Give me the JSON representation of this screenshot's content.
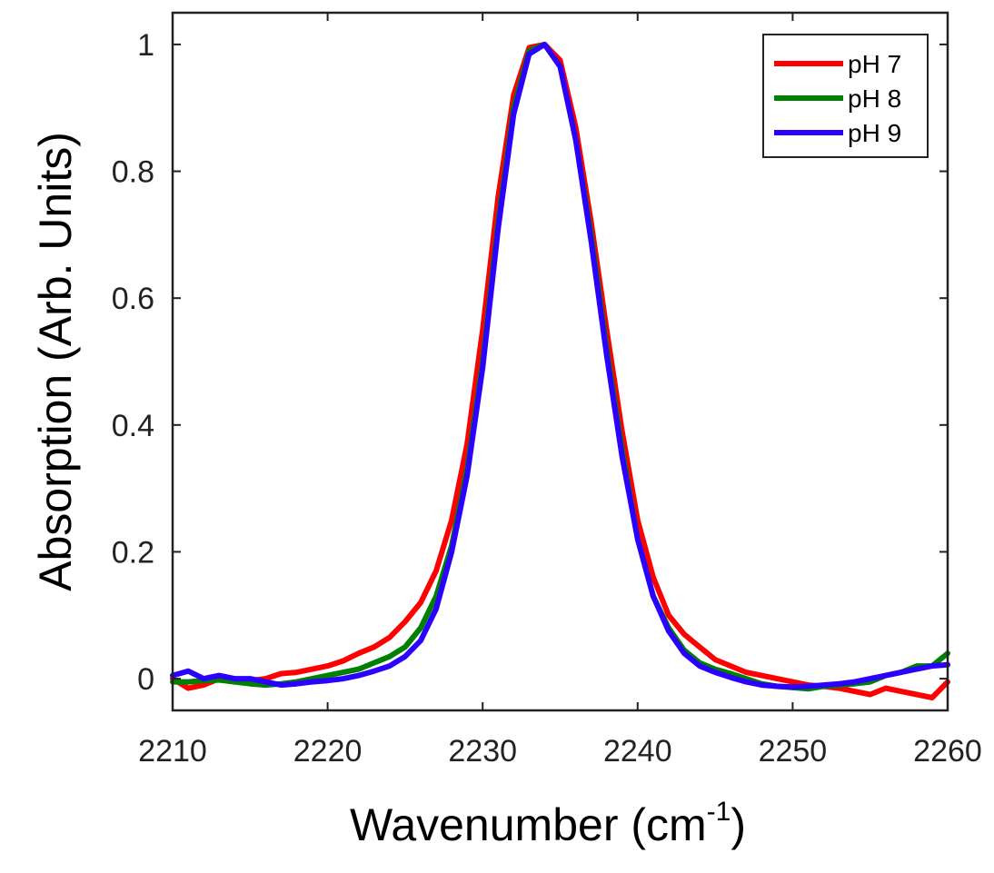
{
  "chart_data": {
    "type": "line",
    "xlabel": "Wavenumber (cm",
    "xlabel_sup": "-1",
    "xlabel_close": ")",
    "ylabel": "Absorption (Arb. Units)",
    "xlim": [
      2210,
      2260
    ],
    "ylim": [
      -0.05,
      1.05
    ],
    "xticks": [
      2210,
      2220,
      2230,
      2240,
      2250,
      2260
    ],
    "yticks": [
      0,
      0.2,
      0.4,
      0.6,
      0.8,
      1
    ],
    "ytick_labels": [
      "0",
      "0.2",
      "0.4",
      "0.6",
      "0.8",
      "1"
    ],
    "grid": false,
    "legend_position": "top-right",
    "series": [
      {
        "name": "pH 7",
        "color": "#ff0000",
        "x": [
          2210,
          2211,
          2212,
          2213,
          2214,
          2215,
          2216,
          2217,
          2218,
          2219,
          2220,
          2221,
          2222,
          2223,
          2224,
          2225,
          2226,
          2227,
          2228,
          2229,
          2230,
          2231,
          2232,
          2233,
          2234,
          2235,
          2236,
          2237,
          2238,
          2239,
          2240,
          2241,
          2242,
          2243,
          2244,
          2245,
          2246,
          2247,
          2248,
          2249,
          2250,
          2251,
          2252,
          2253,
          2254,
          2255,
          2256,
          2257,
          2258,
          2259,
          2260
        ],
        "y": [
          0.0,
          -0.015,
          -0.01,
          0.0,
          -0.005,
          -0.003,
          0.0,
          0.008,
          0.01,
          0.015,
          0.02,
          0.028,
          0.04,
          0.05,
          0.065,
          0.09,
          0.12,
          0.17,
          0.25,
          0.37,
          0.55,
          0.76,
          0.92,
          0.995,
          1.0,
          0.975,
          0.87,
          0.72,
          0.55,
          0.39,
          0.25,
          0.16,
          0.1,
          0.07,
          0.05,
          0.03,
          0.02,
          0.01,
          0.005,
          0.0,
          -0.005,
          -0.01,
          -0.012,
          -0.015,
          -0.02,
          -0.025,
          -0.015,
          -0.02,
          -0.025,
          -0.03,
          -0.005
        ]
      },
      {
        "name": "pH 8",
        "color": "#008000",
        "x": [
          2210,
          2211,
          2212,
          2213,
          2214,
          2215,
          2216,
          2217,
          2218,
          2219,
          2220,
          2221,
          2222,
          2223,
          2224,
          2225,
          2226,
          2227,
          2228,
          2229,
          2230,
          2231,
          2232,
          2233,
          2234,
          2235,
          2236,
          2237,
          2238,
          2239,
          2240,
          2241,
          2242,
          2243,
          2244,
          2245,
          2246,
          2247,
          2248,
          2249,
          2250,
          2251,
          2252,
          2253,
          2254,
          2255,
          2256,
          2257,
          2258,
          2259,
          2260
        ],
        "y": [
          -0.005,
          -0.005,
          -0.003,
          -0.002,
          -0.005,
          -0.008,
          -0.01,
          -0.008,
          -0.005,
          0.0,
          0.005,
          0.01,
          0.015,
          0.025,
          0.035,
          0.05,
          0.08,
          0.13,
          0.21,
          0.33,
          0.5,
          0.72,
          0.9,
          0.99,
          1.0,
          0.965,
          0.85,
          0.7,
          0.52,
          0.36,
          0.22,
          0.13,
          0.08,
          0.045,
          0.025,
          0.015,
          0.008,
          0.0,
          -0.008,
          -0.012,
          -0.014,
          -0.016,
          -0.012,
          -0.01,
          -0.008,
          -0.005,
          0.005,
          0.01,
          0.02,
          0.02,
          0.04
        ]
      },
      {
        "name": "pH 9",
        "color": "#2b00ff",
        "x": [
          2210,
          2211,
          2212,
          2213,
          2214,
          2215,
          2216,
          2217,
          2218,
          2219,
          2220,
          2221,
          2222,
          2223,
          2224,
          2225,
          2226,
          2227,
          2228,
          2229,
          2230,
          2231,
          2232,
          2233,
          2234,
          2235,
          2236,
          2237,
          2238,
          2239,
          2240,
          2241,
          2242,
          2243,
          2244,
          2245,
          2246,
          2247,
          2248,
          2249,
          2250,
          2251,
          2252,
          2253,
          2254,
          2255,
          2256,
          2257,
          2258,
          2259,
          2260
        ],
        "y": [
          0.005,
          0.012,
          0.0,
          0.005,
          0.0,
          0.0,
          -0.005,
          -0.01,
          -0.008,
          -0.005,
          -0.003,
          0.0,
          0.005,
          0.012,
          0.02,
          0.035,
          0.06,
          0.11,
          0.2,
          0.32,
          0.49,
          0.71,
          0.89,
          0.985,
          1.0,
          0.965,
          0.85,
          0.69,
          0.51,
          0.35,
          0.22,
          0.13,
          0.075,
          0.04,
          0.02,
          0.01,
          0.002,
          -0.005,
          -0.01,
          -0.012,
          -0.013,
          -0.012,
          -0.01,
          -0.008,
          -0.005,
          0.0,
          0.005,
          0.01,
          0.015,
          0.02,
          0.022
        ]
      }
    ]
  }
}
